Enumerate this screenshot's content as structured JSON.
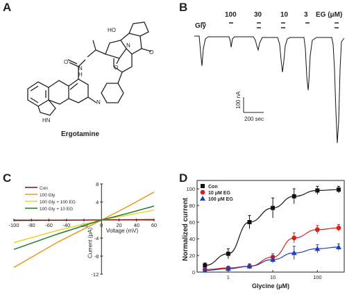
{
  "panels": {
    "A": {
      "letter": "A",
      "caption": "Ergotamine",
      "atoms": {
        "n_amide": "N",
        "h_amide": "H",
        "ho": "HO",
        "oxygen": "O",
        "n_ring": "N",
        "hn": "HN"
      }
    },
    "B": {
      "letter": "B",
      "gly_label": "Gly",
      "conc_labels": [
        "100",
        "30",
        "10",
        "3"
      ],
      "eg_label": "EG (μM)",
      "scale_y": "100 nA",
      "scale_x": "200 sec"
    },
    "C": {
      "letter": "C"
    },
    "D": {
      "letter": "D"
    }
  },
  "chart_data": [
    {
      "id": "C",
      "type": "line",
      "xlabel": "Voltage (mV)",
      "ylabel": "Current (μA)",
      "xlim": [
        -100,
        60
      ],
      "ylim": [
        -12,
        8
      ],
      "x_ticks": [
        -100,
        -80,
        -60,
        -40,
        -20,
        0,
        20,
        40,
        60
      ],
      "y_ticks": [
        -12,
        -8,
        -4,
        0,
        4,
        8
      ],
      "legend_position": "top-left",
      "series": [
        {
          "name": "Con",
          "color": "#7a1010",
          "x": [
            -100,
            60
          ],
          "y": [
            -0.1,
            0.1
          ]
        },
        {
          "name": "100 Gly",
          "color": "#e39a1d",
          "x": [
            -100,
            -50,
            0,
            30,
            60
          ],
          "y": [
            -10.5,
            -4.9,
            0.0,
            3.0,
            6.2
          ]
        },
        {
          "name": "100 Gly + 100 EG",
          "color": "#e8d23a",
          "x": [
            -100,
            -50,
            0,
            30,
            60
          ],
          "y": [
            -5.0,
            -2.3,
            0.0,
            1.1,
            2.2
          ]
        },
        {
          "name": "100 Gly + 10 EG",
          "color": "#1f7a2a",
          "x": [
            -100,
            -50,
            0,
            30,
            60
          ],
          "y": [
            -6.5,
            -3.1,
            0.0,
            1.5,
            3.1
          ]
        }
      ]
    },
    {
      "id": "D",
      "type": "scatter",
      "xlabel": "Glycine (μM)",
      "ylabel": "Normalized current",
      "xscale": "log",
      "xlim": [
        0.2,
        400
      ],
      "ylim": [
        0,
        110
      ],
      "x_ticks": [
        1,
        10,
        100
      ],
      "y_ticks": [
        0,
        20,
        40,
        60,
        80,
        100
      ],
      "legend_position": "top-left",
      "series": [
        {
          "name": "Con",
          "color": "#111111",
          "marker": "square",
          "x": [
            0.3,
            1,
            3,
            10,
            30,
            100,
            300
          ],
          "y": [
            8,
            22,
            60,
            77,
            91,
            98,
            99
          ],
          "err": [
            3,
            6,
            8,
            12,
            9,
            5,
            4
          ]
        },
        {
          "name": "10 μM EG",
          "color": "#d62020",
          "marker": "circle",
          "x": [
            0.3,
            1,
            3,
            10,
            30,
            100,
            300
          ],
          "y": [
            3,
            5,
            7,
            18,
            41,
            51,
            53
          ],
          "err": [
            2,
            2,
            3,
            4,
            6,
            5,
            4
          ]
        },
        {
          "name": "100 μM EG",
          "color": "#1f3fb0",
          "marker": "triangle",
          "x": [
            0.3,
            1,
            3,
            10,
            30,
            100,
            300
          ],
          "y": [
            2,
            4,
            7,
            15,
            23,
            28,
            30
          ],
          "err": [
            2,
            2,
            3,
            4,
            8,
            5,
            4
          ]
        }
      ]
    }
  ],
  "traces": {
    "baseline_current": 0,
    "responses": [
      {
        "conc": "100",
        "eg": false,
        "peak_nA": -75
      },
      {
        "conc": "100",
        "eg": true,
        "peak_nA": -12
      },
      {
        "conc": "30",
        "eg": false,
        "peak_nA": -70
      },
      {
        "conc": "30",
        "eg": true,
        "peak_nA": -10
      },
      {
        "conc": "10",
        "eg": false,
        "peak_nA": -60
      },
      {
        "conc": "10",
        "eg": true,
        "peak_nA": -13
      },
      {
        "conc": "3",
        "eg": false,
        "peak_nA": -210
      },
      {
        "conc": "3",
        "eg": true,
        "peak_nA": -230
      }
    ]
  }
}
